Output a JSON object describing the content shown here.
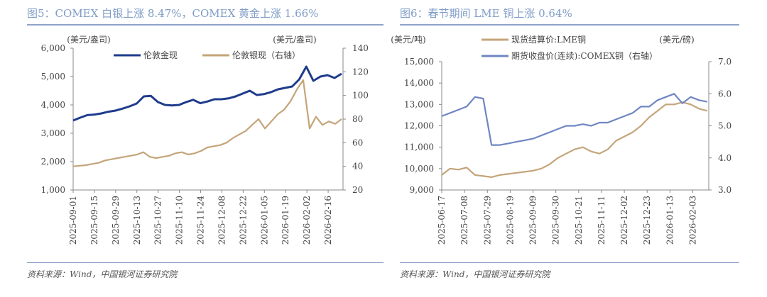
{
  "colors": {
    "gold": "#1f3c8c",
    "silver": "#c4a57a",
    "lme": "#c4a57a",
    "comex": "#6f86c2",
    "accent": "#7f9cc7"
  },
  "footer": "资料来源：Wind，中国银河证券研究院",
  "chart_data": [
    {
      "type": "line",
      "title": "图5：COMEX 白银上涨 8.47%，COMEX 黄金上涨 1.66%",
      "left_unit": "(美元/盎司)",
      "right_unit": "(美元/盎司)",
      "ylim": [
        1000,
        6000
      ],
      "yticks": [
        "1,000",
        "2,000",
        "3,000",
        "4,000",
        "5,000",
        "6,000"
      ],
      "y2lim": [
        20,
        140
      ],
      "y2ticks": [
        "20",
        "40",
        "60",
        "80",
        "100",
        "120",
        "140"
      ],
      "xticks": [
        "2025-09-01",
        "2025-09-15",
        "2025-09-29",
        "2025-10-13",
        "2025-10-27",
        "2025-11-10",
        "2025-11-24",
        "2025-12-08",
        "2025-12-22",
        "2026-01-05",
        "2026-01-19",
        "2026-02-02",
        "2026-02-16"
      ],
      "series": [
        {
          "name": "伦敦金现",
          "axis": "left",
          "color": "#1f3c8c",
          "values": [
            3450,
            3550,
            3640,
            3660,
            3700,
            3760,
            3800,
            3870,
            3950,
            4050,
            4300,
            4320,
            4100,
            4000,
            3980,
            4000,
            4100,
            4180,
            4060,
            4120,
            4200,
            4200,
            4230,
            4300,
            4400,
            4500,
            4350,
            4380,
            4450,
            4550,
            4600,
            4650,
            4900,
            5350,
            4850,
            5000,
            5050,
            4950,
            5100
          ]
        },
        {
          "name": "伦敦银现（右轴）",
          "axis": "right",
          "color": "#c4a57a",
          "values": [
            40,
            40.5,
            41,
            42,
            43,
            45,
            46,
            47,
            48,
            49,
            50,
            52,
            48,
            47,
            48,
            49,
            51,
            52,
            50,
            51,
            53,
            56,
            57,
            58,
            60,
            64,
            67,
            70,
            75,
            80,
            72,
            78,
            84,
            88,
            95,
            105,
            113,
            72,
            82,
            75,
            78,
            76,
            80
          ]
        }
      ]
    },
    {
      "type": "line",
      "title": "图6：春节期间 LME 铜上涨 0.64%",
      "left_unit": "(美元/吨)",
      "right_unit": "(美元/磅)",
      "ylim": [
        9000,
        15000
      ],
      "yticks": [
        "9,000",
        "10,000",
        "11,000",
        "12,000",
        "13,000",
        "14,000",
        "15,000"
      ],
      "y2lim": [
        3.0,
        7.0
      ],
      "y2ticks": [
        "3.0",
        "4.0",
        "5.0",
        "6.0",
        "7.0"
      ],
      "xticks": [
        "2025-06-17",
        "2025-07-08",
        "2025-07-29",
        "2025-08-19",
        "2025-09-09",
        "2025-09-30",
        "2025-10-21",
        "2025-11-11",
        "2025-12-02",
        "2025-12-23",
        "2026-01-13",
        "2026-02-03"
      ],
      "series": [
        {
          "name": "现货结算价:LME铜",
          "axis": "left",
          "color": "#c4a57a",
          "values": [
            9700,
            10000,
            9950,
            10050,
            9700,
            9650,
            9600,
            9700,
            9750,
            9800,
            9850,
            9900,
            10000,
            10200,
            10500,
            10700,
            10900,
            11000,
            10800,
            10700,
            10900,
            11300,
            11500,
            11700,
            12000,
            12400,
            12700,
            13000,
            13000,
            13100,
            13000,
            12800,
            12700
          ]
        },
        {
          "name": "期货收盘价(连续):COMEX铜（右轴）",
          "axis": "right",
          "color": "#6f86c2",
          "values": [
            5.3,
            5.4,
            5.5,
            5.6,
            5.9,
            5.85,
            4.4,
            4.4,
            4.45,
            4.5,
            4.55,
            4.6,
            4.7,
            4.8,
            4.9,
            5.0,
            5.0,
            5.05,
            5.0,
            5.1,
            5.1,
            5.2,
            5.3,
            5.4,
            5.6,
            5.6,
            5.8,
            5.9,
            6.0,
            5.7,
            5.9,
            5.8,
            5.75
          ]
        }
      ]
    }
  ]
}
